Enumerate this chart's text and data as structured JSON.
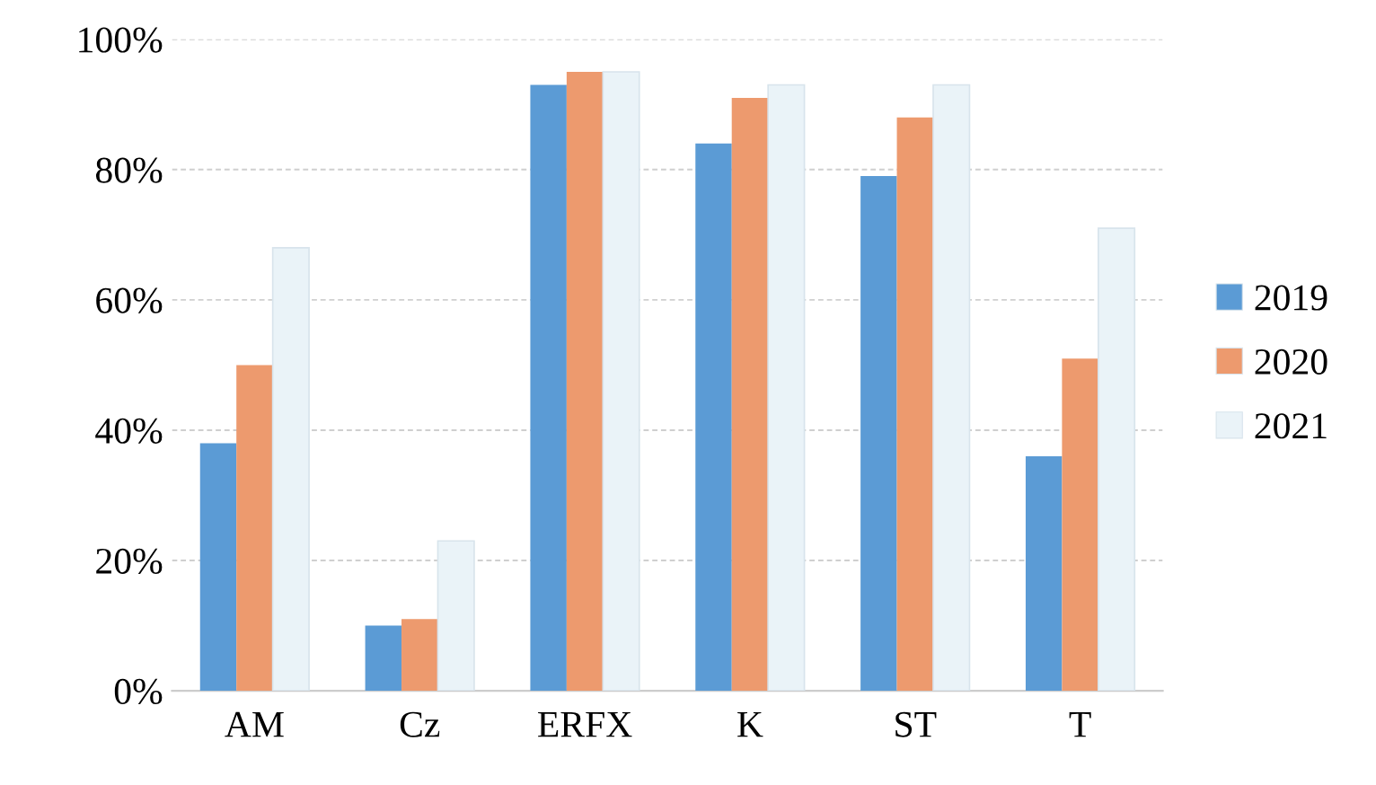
{
  "chart_data": {
    "type": "bar",
    "categories": [
      "AM",
      "Cz",
      "ERFX",
      "K",
      "ST",
      "T"
    ],
    "series": [
      {
        "name": "2019",
        "color": "#5b9bd5",
        "values": [
          38,
          10,
          93,
          84,
          79,
          36
        ]
      },
      {
        "name": "2020",
        "color": "#ed9a6e",
        "values": [
          50,
          11,
          95,
          91,
          88,
          51
        ]
      },
      {
        "name": "2021",
        "color": "#eaf3f8",
        "values": [
          68,
          23,
          95,
          93,
          93,
          71
        ]
      }
    ],
    "ylim": [
      0,
      100
    ],
    "yticks": [
      {
        "value": 0,
        "label": "0%"
      },
      {
        "value": 20,
        "label": "20%"
      },
      {
        "value": 40,
        "label": "40%"
      },
      {
        "value": 60,
        "label": "60%"
      },
      {
        "value": 80,
        "label": "80%"
      },
      {
        "value": 100,
        "label": "100%"
      }
    ],
    "grid": "y",
    "legend": "right"
  }
}
